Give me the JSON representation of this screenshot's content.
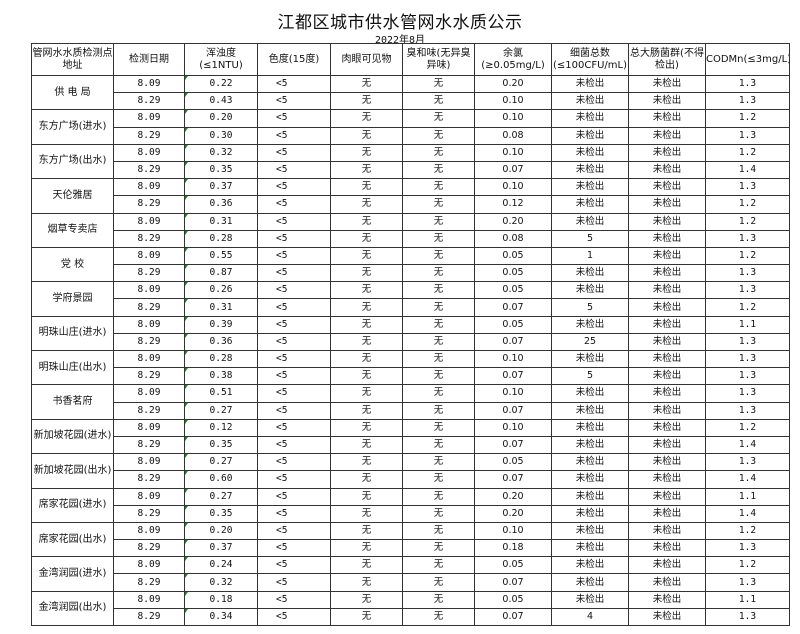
{
  "title": "江都区城市供水管网水水质公示",
  "subtitle": "2022年8月",
  "headers": [
    "管网水水质检测点地址",
    "检测日期",
    "浑浊度(≤1NTU)",
    "色度(15度)",
    "肉眼可见物",
    "臭和味(无异臭异味)",
    "余氯(≥0.05mg/L)",
    "细菌总数(≤100CFU/mL)",
    "总大肠菌群(不得检出)",
    "CODMn(≤3mg/L)"
  ],
  "sites": [
    {
      "name": "供 电 局",
      "rows": [
        [
          "8.09",
          "0.22",
          "<5",
          "无",
          "无",
          "0.20",
          "未检出",
          "未检出",
          "1.3"
        ],
        [
          "8.29",
          "0.43",
          "<5",
          "无",
          "无",
          "0.10",
          "未检出",
          "未检出",
          "1.3"
        ]
      ]
    },
    {
      "name": "东方广场(进水)",
      "rows": [
        [
          "8.09",
          "0.20",
          "<5",
          "无",
          "无",
          "0.10",
          "未检出",
          "未检出",
          "1.2"
        ],
        [
          "8.29",
          "0.30",
          "<5",
          "无",
          "无",
          "0.08",
          "未检出",
          "未检出",
          "1.3"
        ]
      ]
    },
    {
      "name": "东方广场(出水)",
      "rows": [
        [
          "8.09",
          "0.32",
          "<5",
          "无",
          "无",
          "0.10",
          "未检出",
          "未检出",
          "1.2"
        ],
        [
          "8.29",
          "0.35",
          "<5",
          "无",
          "无",
          "0.07",
          "未检出",
          "未检出",
          "1.4"
        ]
      ]
    },
    {
      "name": "天伦雅居",
      "rows": [
        [
          "8.09",
          "0.37",
          "<5",
          "无",
          "无",
          "0.10",
          "未检出",
          "未检出",
          "1.3"
        ],
        [
          "8.29",
          "0.36",
          "<5",
          "无",
          "无",
          "0.12",
          "未检出",
          "未检出",
          "1.2"
        ]
      ]
    },
    {
      "name": "烟草专卖店",
      "rows": [
        [
          "8.09",
          "0.31",
          "<5",
          "无",
          "无",
          "0.20",
          "未检出",
          "未检出",
          "1.2"
        ],
        [
          "8.29",
          "0.28",
          "<5",
          "无",
          "无",
          "0.08",
          "5",
          "未检出",
          "1.3"
        ]
      ]
    },
    {
      "name": "党  校",
      "rows": [
        [
          "8.09",
          "0.55",
          "<5",
          "无",
          "无",
          "0.05",
          "1",
          "未检出",
          "1.2"
        ],
        [
          "8.29",
          "0.87",
          "<5",
          "无",
          "无",
          "0.05",
          "未检出",
          "未检出",
          "1.3"
        ]
      ]
    },
    {
      "name": "学府景园",
      "rows": [
        [
          "8.09",
          "0.26",
          "<5",
          "无",
          "无",
          "0.05",
          "未检出",
          "未检出",
          "1.3"
        ],
        [
          "8.29",
          "0.31",
          "<5",
          "无",
          "无",
          "0.07",
          "5",
          "未检出",
          "1.2"
        ]
      ]
    },
    {
      "name": "明珠山庄(进水)",
      "rows": [
        [
          "8.09",
          "0.39",
          "<5",
          "无",
          "无",
          "0.05",
          "未检出",
          "未检出",
          "1.1"
        ],
        [
          "8.29",
          "0.36",
          "<5",
          "无",
          "无",
          "0.07",
          "25",
          "未检出",
          "1.3"
        ]
      ]
    },
    {
      "name": "明珠山庄(出水)",
      "rows": [
        [
          "8.09",
          "0.28",
          "<5",
          "无",
          "无",
          "0.10",
          "未检出",
          "未检出",
          "1.3"
        ],
        [
          "8.29",
          "0.38",
          "<5",
          "无",
          "无",
          "0.07",
          "5",
          "未检出",
          "1.3"
        ]
      ]
    },
    {
      "name": "书香茗府",
      "rows": [
        [
          "8.09",
          "0.51",
          "<5",
          "无",
          "无",
          "0.10",
          "未检出",
          "未检出",
          "1.3"
        ],
        [
          "8.29",
          "0.27",
          "<5",
          "无",
          "无",
          "0.07",
          "未检出",
          "未检出",
          "1.3"
        ]
      ]
    },
    {
      "name": "新加坡花园(进水)",
      "rows": [
        [
          "8.09",
          "0.12",
          "<5",
          "无",
          "无",
          "0.10",
          "未检出",
          "未检出",
          "1.2"
        ],
        [
          "8.29",
          "0.35",
          "<5",
          "无",
          "无",
          "0.07",
          "未检出",
          "未检出",
          "1.4"
        ]
      ]
    },
    {
      "name": "新加坡花园(出水)",
      "rows": [
        [
          "8.09",
          "0.27",
          "<5",
          "无",
          "无",
          "0.05",
          "未检出",
          "未检出",
          "1.3"
        ],
        [
          "8.29",
          "0.60",
          "<5",
          "无",
          "无",
          "0.07",
          "未检出",
          "未检出",
          "1.4"
        ]
      ]
    },
    {
      "name": "席家花园(进水)",
      "rows": [
        [
          "8.09",
          "0.27",
          "<5",
          "无",
          "无",
          "0.20",
          "未检出",
          "未检出",
          "1.1"
        ],
        [
          "8.29",
          "0.35",
          "<5",
          "无",
          "无",
          "0.20",
          "未检出",
          "未检出",
          "1.4"
        ]
      ]
    },
    {
      "name": "席家花园(出水)",
      "rows": [
        [
          "8.09",
          "0.20",
          "<5",
          "无",
          "无",
          "0.10",
          "未检出",
          "未检出",
          "1.2"
        ],
        [
          "8.29",
          "0.37",
          "<5",
          "无",
          "无",
          "0.18",
          "未检出",
          "未检出",
          "1.3"
        ]
      ]
    },
    {
      "name": "金湾润园(进水)",
      "rows": [
        [
          "8.09",
          "0.24",
          "<5",
          "无",
          "无",
          "0.05",
          "未检出",
          "未检出",
          "1.2"
        ],
        [
          "8.29",
          "0.32",
          "<5",
          "无",
          "无",
          "0.07",
          "未检出",
          "未检出",
          "1.3"
        ]
      ]
    },
    {
      "name": "金湾润园(出水)",
      "rows": [
        [
          "8.09",
          "0.18",
          "<5",
          "无",
          "无",
          "0.05",
          "未检出",
          "未检出",
          "1.1"
        ],
        [
          "8.29",
          "0.34",
          "<5",
          "无",
          "无",
          "0.07",
          "4",
          "未检出",
          "1.3"
        ]
      ]
    }
  ]
}
